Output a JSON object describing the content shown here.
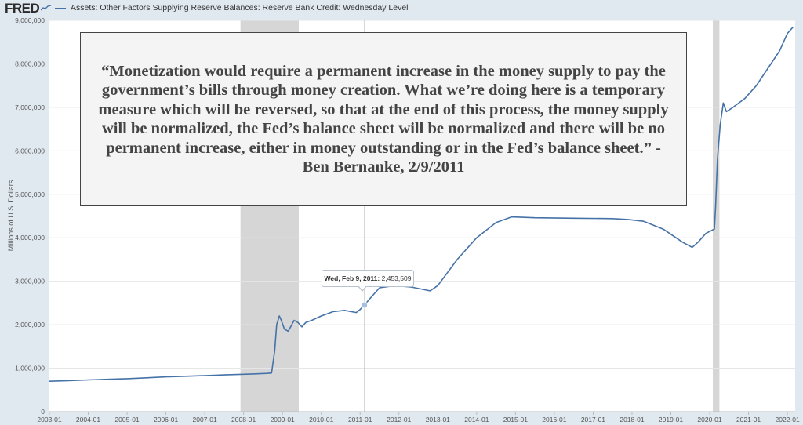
{
  "header": {
    "logo_text": "FRED",
    "logo_icon": "sparkline-icon",
    "series_title": "Assets: Other Factors Supplying Reserve Balances: Reserve Bank Credit: Wednesday Level"
  },
  "quote": {
    "text": "“Monetization would require a permanent increase in the money supply to pay the government’s bills through money creation. What we’re doing here is a temporary measure which will be reversed, so that at the end of this process, the money supply will be normalized, the Fed’s balance sheet will be normalized and there will be no permanent increase, either in money outstanding or in the Fed’s balance sheet.” -Ben Bernanke, 2/9/2011"
  },
  "tooltip": {
    "date_label": "Wed, Feb 9, 2011:",
    "value_label": "2,453,509"
  },
  "colors": {
    "series": "#4572a7",
    "recession": "#d6d6d6",
    "grid": "#e6e6e6",
    "plot_background": "#ffffff",
    "page_background": "#e1e9f0"
  },
  "chart_data": {
    "type": "line",
    "ylabel": "Millions of U.S. Dollars",
    "ylim": [
      0,
      9000000
    ],
    "xlim": [
      2003.0,
      2022.2
    ],
    "grid": "horizontal",
    "y_ticks": [
      0,
      1000000,
      2000000,
      3000000,
      4000000,
      5000000,
      6000000,
      7000000,
      8000000,
      9000000
    ],
    "y_tick_labels": [
      "0",
      "1,000,000",
      "2,000,000",
      "3,000,000",
      "4,000,000",
      "5,000,000",
      "6,000,000",
      "7,000,000",
      "8,000,000",
      "9,000,000"
    ],
    "x_ticks": [
      2003,
      2004,
      2005,
      2006,
      2007,
      2008,
      2009,
      2010,
      2011,
      2012,
      2013,
      2014,
      2015,
      2016,
      2017,
      2018,
      2019,
      2020,
      2021,
      2022
    ],
    "x_tick_labels": [
      "2003-01",
      "2004-01",
      "2005-01",
      "2006-01",
      "2007-01",
      "2008-01",
      "2009-01",
      "2010-01",
      "2011-01",
      "2012-01",
      "2013-01",
      "2014-01",
      "2015-01",
      "2016-01",
      "2017-01",
      "2018-01",
      "2019-01",
      "2020-01",
      "2021-01",
      "2022-01"
    ],
    "recessions": [
      [
        2007.92,
        2009.42
      ],
      [
        2020.08,
        2020.25
      ]
    ],
    "highlight": {
      "x": 2011.11,
      "y": 2453509
    },
    "series": [
      {
        "x": [
          2003.0,
          2003.5,
          2004.0,
          2004.5,
          2005.0,
          2005.5,
          2006.0,
          2006.5,
          2007.0,
          2007.5,
          2008.0,
          2008.3,
          2008.6,
          2008.72,
          2008.8,
          2008.85,
          2008.92,
          2008.97,
          2009.05,
          2009.15,
          2009.3,
          2009.4,
          2009.5,
          2009.6,
          2009.75,
          2010.0,
          2010.3,
          2010.6,
          2010.9,
          2011.0,
          2011.11,
          2011.3,
          2011.5,
          2011.9,
          2012.3,
          2012.8,
          2013.0,
          2013.5,
          2014.0,
          2014.5,
          2014.9,
          2015.5,
          2016.5,
          2017.5,
          2017.9,
          2018.3,
          2018.8,
          2019.3,
          2019.55,
          2019.7,
          2019.9,
          2020.12,
          2020.15,
          2020.2,
          2020.27,
          2020.35,
          2020.43,
          2020.6,
          2020.9,
          2021.2,
          2021.5,
          2021.8,
          2022.0,
          2022.15
        ],
        "y": [
          700000,
          715000,
          730000,
          745000,
          760000,
          780000,
          800000,
          815000,
          830000,
          845000,
          860000,
          870000,
          880000,
          890000,
          1400000,
          2000000,
          2200000,
          2100000,
          1900000,
          1850000,
          2100000,
          2050000,
          1950000,
          2050000,
          2100000,
          2200000,
          2300000,
          2330000,
          2280000,
          2350000,
          2453509,
          2650000,
          2850000,
          2900000,
          2870000,
          2780000,
          2900000,
          3500000,
          4000000,
          4350000,
          4480000,
          4460000,
          4450000,
          4440000,
          4420000,
          4380000,
          4200000,
          3900000,
          3780000,
          3900000,
          4100000,
          4200000,
          4700000,
          5800000,
          6600000,
          7100000,
          6900000,
          7000000,
          7200000,
          7500000,
          7900000,
          8300000,
          8700000,
          8850000
        ]
      }
    ]
  }
}
